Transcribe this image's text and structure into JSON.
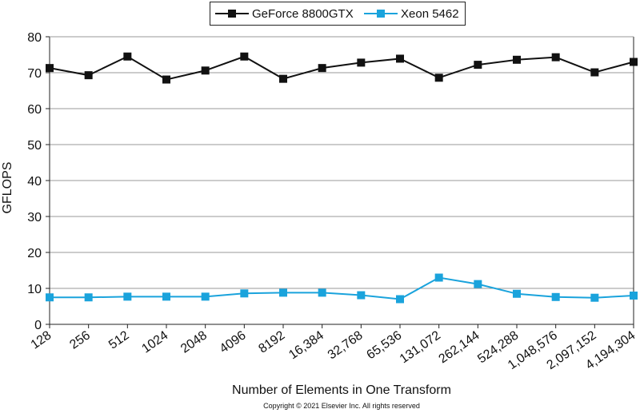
{
  "chart_data": {
    "type": "line",
    "title": "",
    "xlabel": "Number of Elements in One Transform",
    "ylabel": "GFLOPS",
    "ylim": [
      0,
      80
    ],
    "yticks": [
      "0",
      "10",
      "20",
      "30",
      "40",
      "50",
      "60",
      "70",
      "80"
    ],
    "categories": [
      "128",
      "256",
      "512",
      "1024",
      "2048",
      "4096",
      "8192",
      "16,384",
      "32,768",
      "65,536",
      "131,072",
      "262,144",
      "524,288",
      "1,048,576",
      "2,097,152",
      "4,194,304"
    ],
    "grid": "horizontal",
    "legend_position": "top-center",
    "series": [
      {
        "name": "GeForce 8800GTX",
        "color": "#111111",
        "marker": "square",
        "values": [
          71.3,
          69.3,
          74.5,
          68.1,
          70.6,
          74.5,
          68.3,
          71.3,
          72.8,
          73.9,
          68.6,
          72.2,
          73.6,
          74.3,
          70.1,
          73.0
        ]
      },
      {
        "name": "Xeon 5462",
        "color": "#1aa3dc",
        "marker": "square",
        "values": [
          7.5,
          7.5,
          7.7,
          7.7,
          7.7,
          8.6,
          8.8,
          8.8,
          8.1,
          7.0,
          13.0,
          11.2,
          8.5,
          7.6,
          7.4,
          8.0
        ]
      }
    ]
  },
  "copyright": "Copyright © 2021 Elsevier Inc. All rights reserved"
}
